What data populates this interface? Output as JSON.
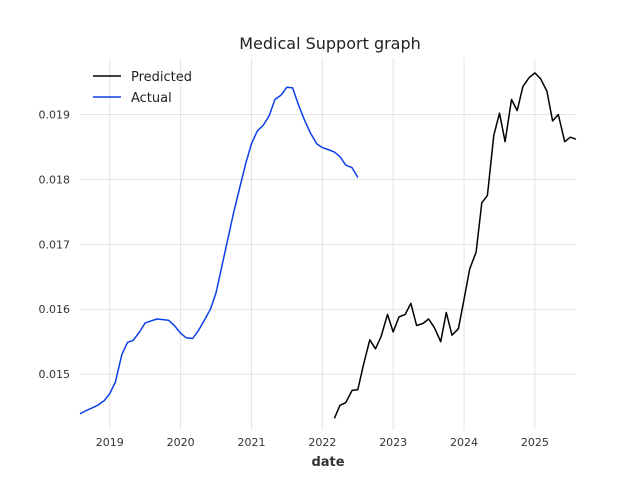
{
  "chart_data": {
    "type": "line",
    "title": "Medical Support graph",
    "xlabel": "date",
    "ylabel": "",
    "xlim": [
      2018.58,
      2025.58
    ],
    "ylim": [
      0.01414,
      0.01987
    ],
    "x_ticks": [
      2019,
      2020,
      2021,
      2022,
      2023,
      2024,
      2025
    ],
    "x_tick_labels": [
      "2019",
      "2020",
      "2021",
      "2022",
      "2023",
      "2024",
      "2025"
    ],
    "y_ticks": [
      0.015,
      0.016,
      0.017,
      0.018,
      0.019
    ],
    "y_tick_labels": [
      "0.015",
      "0.016",
      "0.017",
      "0.018",
      "0.019"
    ],
    "grid": true,
    "legend_position": "top-left",
    "series": [
      {
        "name": "Predicted",
        "color": "#000000",
        "points": [
          [
            2022.17,
            0.01432
          ],
          [
            2022.25,
            0.01452
          ],
          [
            2022.33,
            0.01456
          ],
          [
            2022.42,
            0.01475
          ],
          [
            2022.5,
            0.01476
          ],
          [
            2022.58,
            0.01514
          ],
          [
            2022.67,
            0.01553
          ],
          [
            2022.75,
            0.01539
          ],
          [
            2022.83,
            0.01558
          ],
          [
            2022.92,
            0.01592
          ],
          [
            2023.0,
            0.01565
          ],
          [
            2023.08,
            0.01588
          ],
          [
            2023.17,
            0.01592
          ],
          [
            2023.25,
            0.01609
          ],
          [
            2023.33,
            0.01575
          ],
          [
            2023.42,
            0.01578
          ],
          [
            2023.5,
            0.01585
          ],
          [
            2023.58,
            0.01572
          ],
          [
            2023.67,
            0.0155
          ],
          [
            2023.75,
            0.01595
          ],
          [
            2023.83,
            0.0156
          ],
          [
            2023.92,
            0.0157
          ],
          [
            2024.0,
            0.01615
          ],
          [
            2024.08,
            0.01662
          ],
          [
            2024.17,
            0.01688
          ],
          [
            2024.25,
            0.01764
          ],
          [
            2024.33,
            0.01775
          ],
          [
            2024.42,
            0.01868
          ],
          [
            2024.5,
            0.01902
          ],
          [
            2024.58,
            0.01858
          ],
          [
            2024.67,
            0.01923
          ],
          [
            2024.75,
            0.01906
          ],
          [
            2024.83,
            0.01943
          ],
          [
            2024.92,
            0.01957
          ],
          [
            2025.0,
            0.01964
          ],
          [
            2025.08,
            0.01955
          ],
          [
            2025.17,
            0.01936
          ],
          [
            2025.25,
            0.0189
          ],
          [
            2025.33,
            0.019
          ],
          [
            2025.42,
            0.01858
          ],
          [
            2025.5,
            0.01865
          ],
          [
            2025.58,
            0.01862
          ]
        ]
      },
      {
        "name": "Actual",
        "color": "#0b3fe8",
        "points": [
          [
            2018.58,
            0.01439
          ],
          [
            2018.67,
            0.01444
          ],
          [
            2018.75,
            0.01448
          ],
          [
            2018.83,
            0.01452
          ],
          [
            2018.92,
            0.01459
          ],
          [
            2019.0,
            0.0147
          ],
          [
            2019.08,
            0.01488
          ],
          [
            2019.17,
            0.0153
          ],
          [
            2019.25,
            0.01549
          ],
          [
            2019.33,
            0.01552
          ],
          [
            2019.42,
            0.01565
          ],
          [
            2019.5,
            0.01579
          ],
          [
            2019.58,
            0.01582
          ],
          [
            2019.67,
            0.01585
          ],
          [
            2019.75,
            0.01584
          ],
          [
            2019.83,
            0.01583
          ],
          [
            2019.92,
            0.01574
          ],
          [
            2020.0,
            0.01563
          ],
          [
            2020.08,
            0.01556
          ],
          [
            2020.17,
            0.01555
          ],
          [
            2020.25,
            0.01567
          ],
          [
            2020.33,
            0.01582
          ],
          [
            2020.42,
            0.016
          ],
          [
            2020.5,
            0.01625
          ],
          [
            2020.58,
            0.01665
          ],
          [
            2020.67,
            0.0171
          ],
          [
            2020.75,
            0.0175
          ],
          [
            2020.83,
            0.01785
          ],
          [
            2020.92,
            0.01825
          ],
          [
            2021.0,
            0.01855
          ],
          [
            2021.08,
            0.01874
          ],
          [
            2021.17,
            0.01884
          ],
          [
            2021.25,
            0.01898
          ],
          [
            2021.33,
            0.01923
          ],
          [
            2021.42,
            0.0193
          ],
          [
            2021.5,
            0.01942
          ],
          [
            2021.58,
            0.01941
          ],
          [
            2021.67,
            0.01913
          ],
          [
            2021.75,
            0.01891
          ],
          [
            2021.83,
            0.01872
          ],
          [
            2021.92,
            0.01855
          ],
          [
            2022.0,
            0.01849
          ],
          [
            2022.08,
            0.01846
          ],
          [
            2022.17,
            0.01842
          ],
          [
            2022.25,
            0.01835
          ],
          [
            2022.33,
            0.01822
          ],
          [
            2022.42,
            0.01818
          ],
          [
            2022.5,
            0.01803
          ]
        ]
      }
    ]
  }
}
